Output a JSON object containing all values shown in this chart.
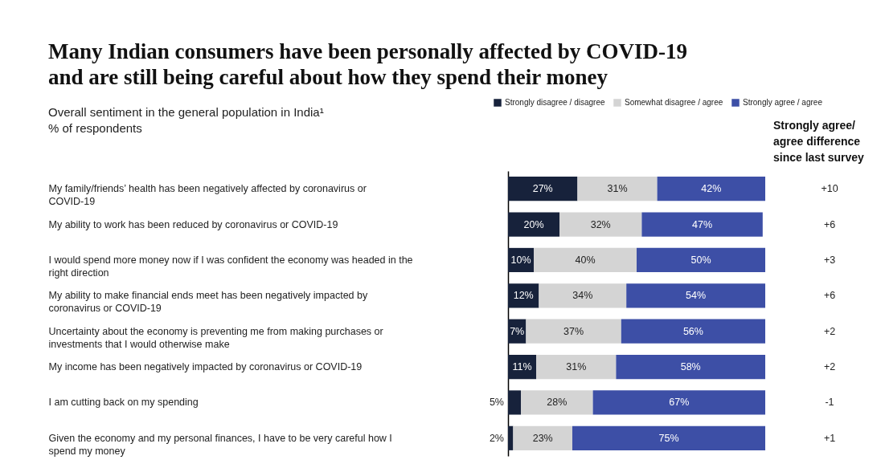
{
  "chart_data": {
    "type": "bar",
    "orientation": "horizontal",
    "stacked": true,
    "legend": "top right",
    "title": "Many Indian consumers have been personally affected by COVID-19 and are still being careful about how they spend their money",
    "subtitle": "Overall sentiment in the general population in India¹",
    "categories": [
      "My family/friends’ health has been negatively affected by coronavirus or COVID-19",
      "My ability to work has been reduced by coronavirus or COVID-19",
      "I would spend more money now if I was confident the economy was headed in the right direction",
      "My ability to make financial ends meet has been negatively impacted by coronavirus or COVID-19",
      "Uncertainty about the economy is preventing me from making purchases or investments that I would otherwise make",
      "My income has been negatively impacted by coronavirus or COVID-19",
      "I am cutting back on my spending",
      "Given the economy and my personal finances, I have to be very careful how I spend my money"
    ],
    "series": [
      {
        "name": "Strongly disagree / disagree",
        "color": "#17223b",
        "values": [
          27,
          20,
          10,
          12,
          7,
          11,
          5,
          2
        ],
        "value_labels": [
          "27%",
          "20%",
          "10%",
          "12%",
          "7%",
          "11%",
          "5%",
          "2%"
        ]
      },
      {
        "name": "Somewhat disagree / agree",
        "color": "#d4d4d4",
        "values": [
          31,
          32,
          40,
          34,
          37,
          31,
          28,
          23
        ],
        "value_labels": [
          "31%",
          "32%",
          "40%",
          "34%",
          "37%",
          "31%",
          "28%",
          "23%"
        ]
      },
      {
        "name": "Strongly agree / agree",
        "color": "#3d4fa6",
        "values": [
          42,
          47,
          50,
          54,
          56,
          58,
          67,
          75
        ],
        "value_labels": [
          "42%",
          "47%",
          "50%",
          "54%",
          "56%",
          "58%",
          "67%",
          "75%"
        ]
      }
    ],
    "annotations": [
      "% of respondents",
      "Strongly agree/ agree difference since last survey",
      "+10",
      "+6",
      "+3",
      "+6",
      "+2",
      "+2",
      "-1",
      "+1"
    ]
  }
}
